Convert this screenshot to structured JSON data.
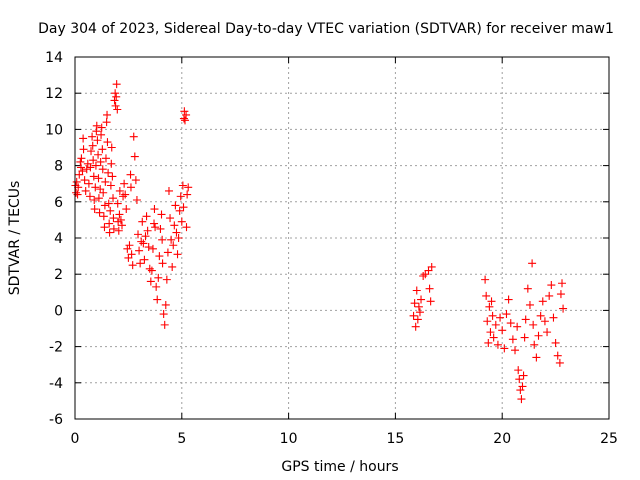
{
  "chart_data": {
    "type": "scatter",
    "title": "Day 304 of 2023, Sidereal Day-to-day VTEC variation (SDTVAR) for receiver maw1",
    "xlabel": "GPS time / hours",
    "ylabel": "SDTVAR / TECUs",
    "xlim": [
      0,
      25
    ],
    "ylim": [
      -6,
      14
    ],
    "xticks": [
      0,
      5,
      10,
      15,
      20,
      25
    ],
    "yticks": [
      -6,
      -4,
      -2,
      0,
      2,
      4,
      6,
      8,
      10,
      12,
      14
    ],
    "grid": true,
    "marker": "plus",
    "series": [
      {
        "name": "maw1",
        "color": "#ff0000",
        "points": [
          [
            0.02,
            6.9
          ],
          [
            0.05,
            6.5
          ],
          [
            0.08,
            7.1
          ],
          [
            0.12,
            6.4
          ],
          [
            0.15,
            6.8
          ],
          [
            0.2,
            7.5
          ],
          [
            0.25,
            8.2
          ],
          [
            0.28,
            7.9
          ],
          [
            0.3,
            8.4
          ],
          [
            0.35,
            7.7
          ],
          [
            0.38,
            9.5
          ],
          [
            0.4,
            8.9
          ],
          [
            0.45,
            7.2
          ],
          [
            0.5,
            6.6
          ],
          [
            0.55,
            7.8
          ],
          [
            0.6,
            8.1
          ],
          [
            0.65,
            7.0
          ],
          [
            0.7,
            6.3
          ],
          [
            0.72,
            7.9
          ],
          [
            0.75,
            8.8
          ],
          [
            0.8,
            9.6
          ],
          [
            0.83,
            9.1
          ],
          [
            0.85,
            8.3
          ],
          [
            0.88,
            7.4
          ],
          [
            0.9,
            6.1
          ],
          [
            0.92,
            5.6
          ],
          [
            0.95,
            6.8
          ],
          [
            0.98,
            8.0
          ],
          [
            1.0,
            9.9
          ],
          [
            1.02,
            10.2
          ],
          [
            1.05,
            9.4
          ],
          [
            1.08,
            8.6
          ],
          [
            1.1,
            7.3
          ],
          [
            1.12,
            6.2
          ],
          [
            1.15,
            5.4
          ],
          [
            1.18,
            6.7
          ],
          [
            1.2,
            8.2
          ],
          [
            1.22,
            9.7
          ],
          [
            1.25,
            10.1
          ],
          [
            1.28,
            8.9
          ],
          [
            1.3,
            7.8
          ],
          [
            1.32,
            6.5
          ],
          [
            1.35,
            5.2
          ],
          [
            1.38,
            4.6
          ],
          [
            1.4,
            5.8
          ],
          [
            1.42,
            7.1
          ],
          [
            1.45,
            8.4
          ],
          [
            1.48,
            10.4
          ],
          [
            1.5,
            10.8
          ],
          [
            1.52,
            9.3
          ],
          [
            1.55,
            7.6
          ],
          [
            1.58,
            5.9
          ],
          [
            1.6,
            4.8
          ],
          [
            1.62,
            4.3
          ],
          [
            1.65,
            5.5
          ],
          [
            1.68,
            6.9
          ],
          [
            1.7,
            8.1
          ],
          [
            1.72,
            9.0
          ],
          [
            1.75,
            7.4
          ],
          [
            1.78,
            6.2
          ],
          [
            1.8,
            5.1
          ],
          [
            1.82,
            4.5
          ],
          [
            1.85,
            11.6
          ],
          [
            1.88,
            12.0
          ],
          [
            1.9,
            11.3
          ],
          [
            1.93,
            11.8
          ],
          [
            1.95,
            12.5
          ],
          [
            1.98,
            11.1
          ],
          [
            2.0,
            5.9
          ],
          [
            2.02,
            4.9
          ],
          [
            2.05,
            4.4
          ],
          [
            2.08,
            5.3
          ],
          [
            2.1,
            6.6
          ],
          [
            2.15,
            5.0
          ],
          [
            2.2,
            4.7
          ],
          [
            2.25,
            6.3
          ],
          [
            2.3,
            7.0
          ],
          [
            2.35,
            6.4
          ],
          [
            2.4,
            5.6
          ],
          [
            2.45,
            3.4
          ],
          [
            2.5,
            2.9
          ],
          [
            2.55,
            3.6
          ],
          [
            2.6,
            7.5
          ],
          [
            2.62,
            6.8
          ],
          [
            2.65,
            3.1
          ],
          [
            2.7,
            2.5
          ],
          [
            2.75,
            9.6
          ],
          [
            2.8,
            8.5
          ],
          [
            2.85,
            7.2
          ],
          [
            2.9,
            6.1
          ],
          [
            2.95,
            4.2
          ],
          [
            3.0,
            3.3
          ],
          [
            3.05,
            2.6
          ],
          [
            3.1,
            3.8
          ],
          [
            3.15,
            4.9
          ],
          [
            3.2,
            3.7
          ],
          [
            3.25,
            2.8
          ],
          [
            3.3,
            4.1
          ],
          [
            3.35,
            5.2
          ],
          [
            3.4,
            4.4
          ],
          [
            3.45,
            3.5
          ],
          [
            3.5,
            2.3
          ],
          [
            3.55,
            1.6
          ],
          [
            3.6,
            2.2
          ],
          [
            3.65,
            3.4
          ],
          [
            3.7,
            4.8
          ],
          [
            3.72,
            5.6
          ],
          [
            3.75,
            4.6
          ],
          [
            3.8,
            1.3
          ],
          [
            3.85,
            0.6
          ],
          [
            3.9,
            1.8
          ],
          [
            3.95,
            3.0
          ],
          [
            4.0,
            4.5
          ],
          [
            4.05,
            5.3
          ],
          [
            4.08,
            3.9
          ],
          [
            4.1,
            2.6
          ],
          [
            4.15,
            -0.2
          ],
          [
            4.2,
            -0.8
          ],
          [
            4.25,
            0.3
          ],
          [
            4.3,
            1.7
          ],
          [
            4.35,
            3.2
          ],
          [
            4.4,
            6.6
          ],
          [
            4.45,
            5.1
          ],
          [
            4.5,
            3.9
          ],
          [
            4.55,
            2.4
          ],
          [
            4.6,
            3.6
          ],
          [
            4.65,
            4.7
          ],
          [
            4.7,
            5.8
          ],
          [
            4.75,
            4.3
          ],
          [
            4.8,
            3.1
          ],
          [
            4.85,
            4.0
          ],
          [
            4.9,
            5.5
          ],
          [
            4.95,
            6.3
          ],
          [
            5.0,
            4.9
          ],
          [
            5.05,
            6.9
          ],
          [
            5.08,
            5.7
          ],
          [
            5.1,
            10.6
          ],
          [
            5.12,
            11.0
          ],
          [
            5.15,
            10.5
          ],
          [
            5.2,
            10.8
          ],
          [
            5.22,
            4.6
          ],
          [
            5.25,
            6.4
          ],
          [
            5.3,
            6.8
          ],
          [
            15.85,
            -0.3
          ],
          [
            15.9,
            0.4
          ],
          [
            15.95,
            -0.9
          ],
          [
            16.0,
            1.1
          ],
          [
            16.05,
            -0.5
          ],
          [
            16.1,
            0.2
          ],
          [
            16.15,
            -0.1
          ],
          [
            16.2,
            0.6
          ],
          [
            16.3,
            1.9
          ],
          [
            16.4,
            2.0
          ],
          [
            16.55,
            2.2
          ],
          [
            16.6,
            1.2
          ],
          [
            16.65,
            0.5
          ],
          [
            16.7,
            2.4
          ],
          [
            19.2,
            1.7
          ],
          [
            19.25,
            0.8
          ],
          [
            19.3,
            -0.6
          ],
          [
            19.35,
            -1.8
          ],
          [
            19.4,
            0.2
          ],
          [
            19.45,
            -1.2
          ],
          [
            19.5,
            0.5
          ],
          [
            19.55,
            -0.3
          ],
          [
            19.6,
            -1.5
          ],
          [
            19.7,
            -0.8
          ],
          [
            19.8,
            -1.9
          ],
          [
            19.9,
            -0.4
          ],
          [
            20.0,
            -1.1
          ],
          [
            20.1,
            -2.1
          ],
          [
            20.2,
            -0.2
          ],
          [
            20.3,
            0.6
          ],
          [
            20.4,
            -0.7
          ],
          [
            20.5,
            -1.6
          ],
          [
            20.6,
            -2.2
          ],
          [
            20.7,
            -0.9
          ],
          [
            20.75,
            -3.3
          ],
          [
            20.8,
            -3.8
          ],
          [
            20.85,
            -4.4
          ],
          [
            20.9,
            -4.9
          ],
          [
            20.95,
            -4.2
          ],
          [
            21.0,
            -3.6
          ],
          [
            21.05,
            -1.5
          ],
          [
            21.1,
            -0.5
          ],
          [
            21.2,
            1.2
          ],
          [
            21.3,
            0.3
          ],
          [
            21.4,
            2.6
          ],
          [
            21.45,
            -0.8
          ],
          [
            21.5,
            -1.9
          ],
          [
            21.6,
            -2.6
          ],
          [
            21.7,
            -1.4
          ],
          [
            21.8,
            -0.3
          ],
          [
            21.9,
            0.5
          ],
          [
            22.0,
            -0.6
          ],
          [
            22.1,
            -1.2
          ],
          [
            22.2,
            0.8
          ],
          [
            22.3,
            1.4
          ],
          [
            22.4,
            -0.4
          ],
          [
            22.5,
            -1.8
          ],
          [
            22.6,
            -2.5
          ],
          [
            22.7,
            -2.9
          ],
          [
            22.75,
            0.9
          ],
          [
            22.8,
            1.5
          ],
          [
            22.85,
            0.1
          ]
        ]
      }
    ]
  }
}
